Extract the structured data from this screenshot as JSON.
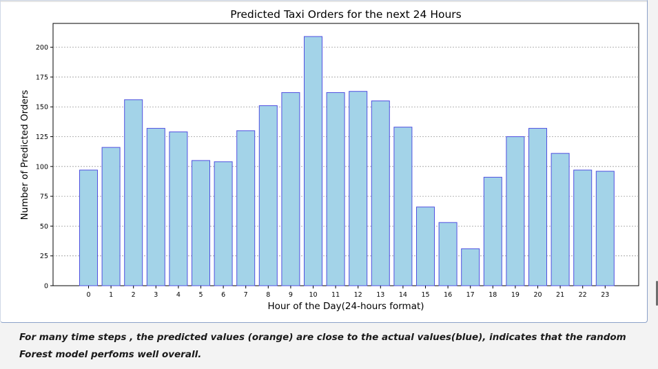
{
  "chart_data": {
    "type": "bar",
    "title": "Predicted Taxi Orders for the next 24 Hours",
    "xlabel": "Hour of the Day(24-hours format)",
    "ylabel": "Number of Predicted Orders",
    "categories": [
      "0",
      "1",
      "2",
      "3",
      "4",
      "5",
      "6",
      "7",
      "8",
      "9",
      "10",
      "11",
      "12",
      "13",
      "14",
      "15",
      "16",
      "17",
      "18",
      "19",
      "20",
      "21",
      "22",
      "23"
    ],
    "values": [
      97,
      116,
      156,
      132,
      129,
      105,
      104,
      130,
      151,
      162,
      209,
      162,
      163,
      155,
      133,
      66,
      53,
      31,
      91,
      125,
      132,
      111,
      97,
      96
    ],
    "yticks": [
      0,
      25,
      50,
      75,
      100,
      125,
      150,
      175,
      200
    ],
    "ylim": [
      0,
      220
    ],
    "grid": true,
    "bar_color": "#a3d3e8",
    "bar_edge_color": "#4f4fe0"
  },
  "caption": {
    "text": "For many time steps , the predicted values (orange) are close to the actual values(blue), indicates that the random Forest model perfoms well overall."
  }
}
